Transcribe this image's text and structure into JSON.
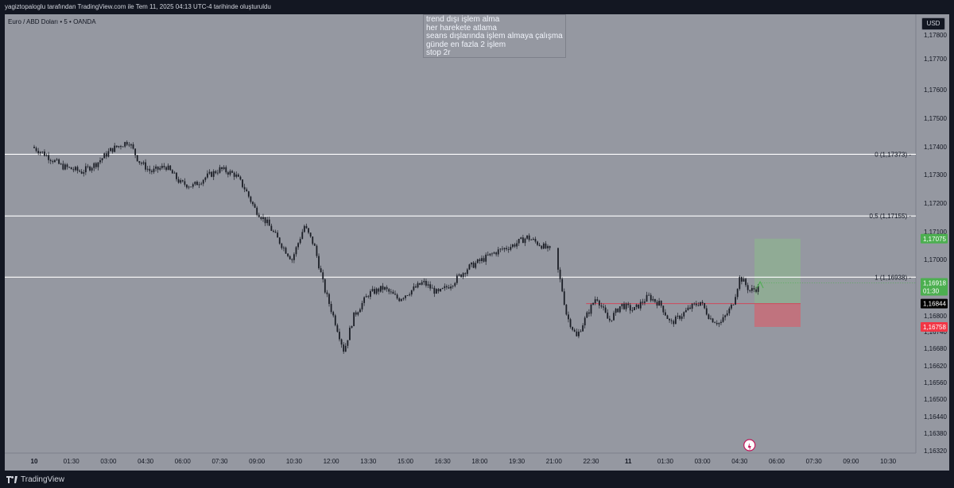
{
  "header": {
    "attribution": "yagiztopaloglu tarafından TradingView.com ile Tem 11, 2025 04:13 UTC-4 tarihinde oluşturuldu"
  },
  "symbol": "Euro / ABD Doları • 5 • OANDA",
  "currency_button": "USD",
  "notes": [
    "trend dışı işlem alma",
    "her harekete atlama",
    "seans dışlarında işlem almaya çalışma",
    "günde en fazla 2 işlem",
    "stop 2r"
  ],
  "footer": {
    "brand": "TradingView"
  },
  "colors": {
    "background": "#9598a1",
    "frame": "#131722",
    "candle": "#1b1e26",
    "fib_line": "#ffffff",
    "target_zone": "#8fae93",
    "stop_zone": "#c86c78",
    "entry_line": "#d1495b",
    "up_label": "#4caf50",
    "down_label": "#f23645",
    "current_label": "#000000"
  },
  "chart_data": {
    "type": "candlestick",
    "title": "Euro / ABD Doları • 5 • OANDA",
    "ylim": [
      1.1628,
      1.1783
    ],
    "y_ticks": [
      "1,17800",
      "1,17700",
      "1,17600",
      "1,17500",
      "1,17400",
      "1,17300",
      "1,17200",
      "1,17100",
      "1,17000",
      "1,16900",
      "1,16800",
      "1,16740",
      "1,16680",
      "1,16620",
      "1,16560",
      "1,16500",
      "1,16440",
      "1,16380",
      "1,16320"
    ],
    "x_ticks": [
      "10",
      "01:30",
      "03:00",
      "04:30",
      "06:00",
      "07:30",
      "09:00",
      "10:30",
      "12:00",
      "13:30",
      "15:00",
      "16:30",
      "18:00",
      "19:30",
      "21:00",
      "22:30",
      "11",
      "01:30",
      "03:00",
      "04:30",
      "06:00",
      "07:30",
      "09:00",
      "10:30"
    ],
    "fibonacci": [
      {
        "label": "0 (1,17373)",
        "value": 1.17373
      },
      {
        "label": "0,5 (1,17155)",
        "value": 1.17155
      },
      {
        "label": "1 (1,16938)",
        "value": 1.16938
      }
    ],
    "long_position": {
      "entry": 1.16844,
      "target": 1.17075,
      "stop": 1.16758
    },
    "price_labels": {
      "target": "1,17075",
      "current": "1,16918",
      "countdown": "01:30",
      "entry": "1,16844",
      "stop": "1,16758"
    },
    "price_path": [
      [
        0,
        1.174
      ],
      [
        0.4,
        1.1738
      ],
      [
        1.2,
        1.1733
      ],
      [
        2,
        1.1731
      ],
      [
        2.6,
        1.1734
      ],
      [
        3.2,
        1.1739
      ],
      [
        3.9,
        1.1742
      ],
      [
        4.3,
        1.1735
      ],
      [
        4.8,
        1.1731
      ],
      [
        5.4,
        1.1733
      ],
      [
        6.0,
        1.1727
      ],
      [
        6.5,
        1.1726
      ],
      [
        7.0,
        1.1729
      ],
      [
        7.6,
        1.1732
      ],
      [
        8.2,
        1.173
      ],
      [
        8.6,
        1.1725
      ],
      [
        9.0,
        1.1718
      ],
      [
        9.5,
        1.1713
      ],
      [
        10.1,
        1.1705
      ],
      [
        10.5,
        1.17
      ],
      [
        11.0,
        1.1712
      ],
      [
        11.4,
        1.1705
      ],
      [
        11.8,
        1.169
      ],
      [
        12.2,
        1.1679
      ],
      [
        12.6,
        1.1667
      ],
      [
        13.0,
        1.168
      ],
      [
        13.6,
        1.1688
      ],
      [
        14.2,
        1.169
      ],
      [
        14.8,
        1.1686
      ],
      [
        15.3,
        1.1689
      ],
      [
        15.8,
        1.1692
      ],
      [
        16.4,
        1.1688
      ],
      [
        17.0,
        1.1692
      ],
      [
        17.6,
        1.1697
      ],
      [
        18.2,
        1.17
      ],
      [
        18.8,
        1.1703
      ],
      [
        19.4,
        1.1705
      ],
      [
        20.0,
        1.1708
      ],
      [
        20.6,
        1.1705
      ],
      [
        21.1,
        1.1702
      ],
      [
        21.4,
        1.169
      ],
      [
        21.6,
        1.168
      ],
      [
        22.0,
        1.1672
      ],
      [
        22.4,
        1.168
      ],
      [
        22.8,
        1.1687
      ],
      [
        23.3,
        1.1678
      ],
      [
        23.8,
        1.1684
      ],
      [
        24.3,
        1.1682
      ],
      [
        24.9,
        1.1687
      ],
      [
        25.4,
        1.1684
      ],
      [
        25.8,
        1.1677
      ],
      [
        26.2,
        1.168
      ],
      [
        26.6,
        1.1683
      ],
      [
        27.0,
        1.1685
      ],
      [
        27.4,
        1.1679
      ],
      [
        27.8,
        1.1677
      ],
      [
        28.3,
        1.1684
      ],
      [
        28.6,
        1.1694
      ],
      [
        29.0,
        1.1689
      ],
      [
        29.3,
        1.169
      ]
    ]
  }
}
